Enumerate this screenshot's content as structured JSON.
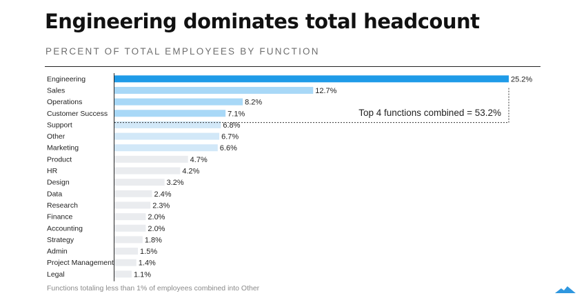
{
  "title": "Engineering dominates total headcount",
  "subtitle": "PERCENT OF TOTAL EMPLOYEES BY FUNCTION",
  "footnote": "Functions totaling less than 1% of employees combined into Other",
  "annotation": "Top 4 functions combined = 53.2%",
  "colors": {
    "highlight": "#1f9be8",
    "top4": "#a8d8f7",
    "mid": "#d2e8f8",
    "rest": "#eaecef",
    "logo": "#2f97df"
  },
  "chart_data": {
    "type": "bar",
    "orientation": "horizontal",
    "title": "Engineering dominates total headcount",
    "subtitle": "PERCENT OF TOTAL EMPLOYEES BY FUNCTION",
    "categories": [
      "Engineering",
      "Sales",
      "Operations",
      "Customer Success",
      "Support",
      "Other",
      "Marketing",
      "Product",
      "HR",
      "Design",
      "Data",
      "Research",
      "Finance",
      "Accounting",
      "Strategy",
      "Admin",
      "Project Management",
      "Legal"
    ],
    "values": [
      25.2,
      12.7,
      8.2,
      7.1,
      6.8,
      6.7,
      6.6,
      4.7,
      4.2,
      3.2,
      2.4,
      2.3,
      2.0,
      2.0,
      1.8,
      1.5,
      1.4,
      1.1
    ],
    "labels": [
      "25.2%",
      "12.7%",
      "8.2%",
      "7.1%",
      "6.8%",
      "6.7%",
      "6.6%",
      "4.7%",
      "4.2%",
      "3.2%",
      "2.4%",
      "2.3%",
      "2.0%",
      "2.0%",
      "1.8%",
      "1.5%",
      "1.4%",
      "1.1%"
    ],
    "color_groups": [
      "highlight",
      "top4",
      "top4",
      "top4",
      "mid",
      "mid",
      "mid",
      "rest",
      "rest",
      "rest",
      "rest",
      "rest",
      "rest",
      "rest",
      "rest",
      "rest",
      "rest",
      "rest"
    ],
    "xlim": [
      0,
      25.2
    ],
    "grid": false,
    "legend": "none"
  }
}
